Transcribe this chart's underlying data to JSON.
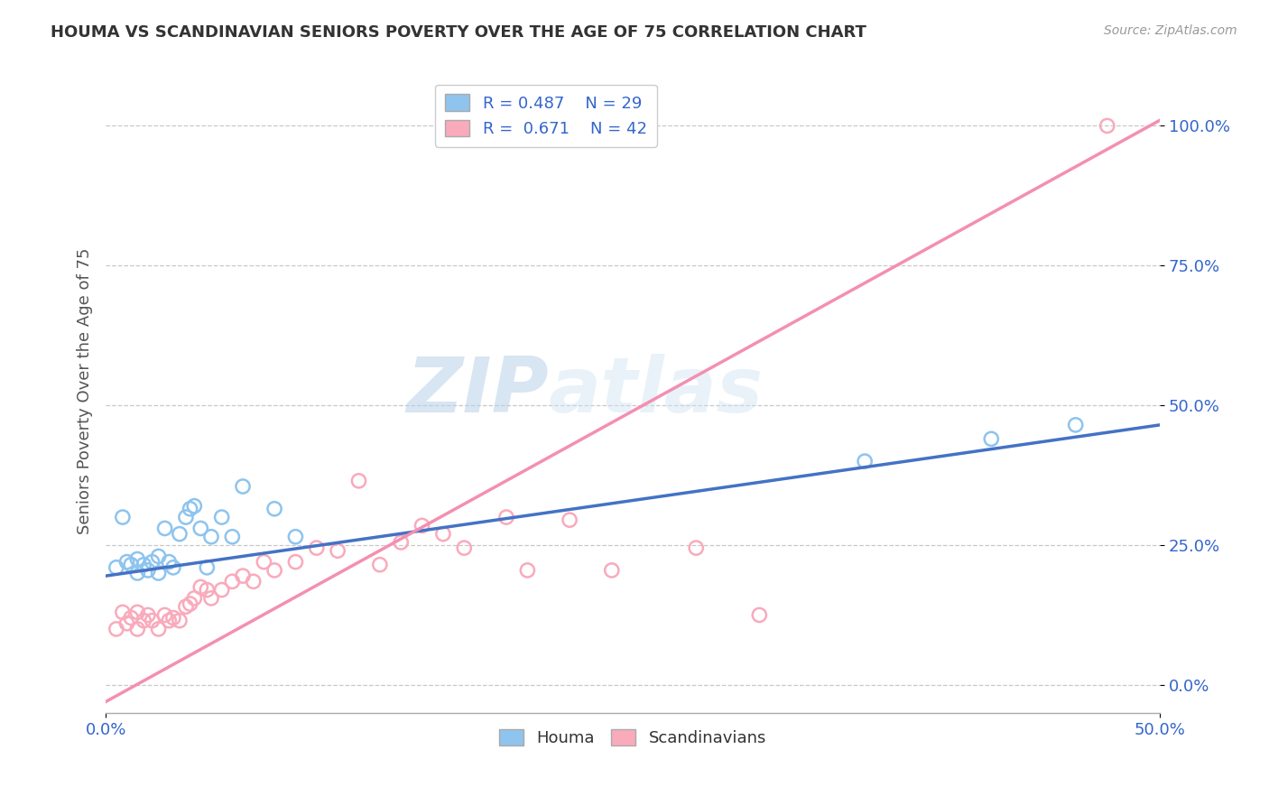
{
  "title": "HOUMA VS SCANDINAVIAN SENIORS POVERTY OVER THE AGE OF 75 CORRELATION CHART",
  "source": "Source: ZipAtlas.com",
  "ylabel": "Seniors Poverty Over the Age of 75",
  "xlim": [
    0.0,
    0.5
  ],
  "ylim": [
    -0.05,
    1.1
  ],
  "yticks": [
    0.0,
    0.25,
    0.5,
    0.75,
    1.0
  ],
  "ytick_labels": [
    "0.0%",
    "25.0%",
    "50.0%",
    "75.0%",
    "100.0%"
  ],
  "xticks": [
    0.0,
    0.5
  ],
  "xtick_labels": [
    "0.0%",
    "50.0%"
  ],
  "houma_color": "#8EC4EE",
  "scandinavian_color": "#F9AABB",
  "houma_line_color": "#4472C4",
  "scandinavian_line_color": "#F48FB1",
  "legend_R_houma": "0.487",
  "legend_N_houma": "29",
  "legend_R_scandinavian": "0.671",
  "legend_N_scandinavian": "42",
  "watermark_zip": "ZIP",
  "watermark_atlas": "atlas",
  "houma_x": [
    0.005,
    0.008,
    0.01,
    0.012,
    0.015,
    0.015,
    0.018,
    0.02,
    0.022,
    0.025,
    0.025,
    0.028,
    0.03,
    0.032,
    0.035,
    0.038,
    0.04,
    0.042,
    0.045,
    0.048,
    0.05,
    0.055,
    0.06,
    0.065,
    0.08,
    0.09,
    0.36,
    0.42,
    0.46
  ],
  "houma_y": [
    0.21,
    0.3,
    0.22,
    0.215,
    0.2,
    0.225,
    0.215,
    0.205,
    0.22,
    0.2,
    0.23,
    0.28,
    0.22,
    0.21,
    0.27,
    0.3,
    0.315,
    0.32,
    0.28,
    0.21,
    0.265,
    0.3,
    0.265,
    0.355,
    0.315,
    0.265,
    0.4,
    0.44,
    0.465
  ],
  "scandinavian_x": [
    0.005,
    0.008,
    0.01,
    0.012,
    0.015,
    0.015,
    0.018,
    0.02,
    0.022,
    0.025,
    0.028,
    0.03,
    0.032,
    0.035,
    0.038,
    0.04,
    0.042,
    0.045,
    0.048,
    0.05,
    0.055,
    0.06,
    0.065,
    0.07,
    0.075,
    0.08,
    0.09,
    0.1,
    0.11,
    0.12,
    0.13,
    0.14,
    0.15,
    0.16,
    0.17,
    0.19,
    0.2,
    0.22,
    0.24,
    0.28,
    0.31,
    0.475
  ],
  "scandinavian_y": [
    0.1,
    0.13,
    0.11,
    0.12,
    0.1,
    0.13,
    0.115,
    0.125,
    0.115,
    0.1,
    0.125,
    0.115,
    0.12,
    0.115,
    0.14,
    0.145,
    0.155,
    0.175,
    0.17,
    0.155,
    0.17,
    0.185,
    0.195,
    0.185,
    0.22,
    0.205,
    0.22,
    0.245,
    0.24,
    0.365,
    0.215,
    0.255,
    0.285,
    0.27,
    0.245,
    0.3,
    0.205,
    0.295,
    0.205,
    0.245,
    0.125,
    1.0
  ],
  "houma_line_x0": 0.0,
  "houma_line_y0": 0.195,
  "houma_line_x1": 0.5,
  "houma_line_y1": 0.465,
  "scand_line_x0": 0.0,
  "scand_line_y0": -0.03,
  "scand_line_x1": 0.5,
  "scand_line_y1": 1.01
}
